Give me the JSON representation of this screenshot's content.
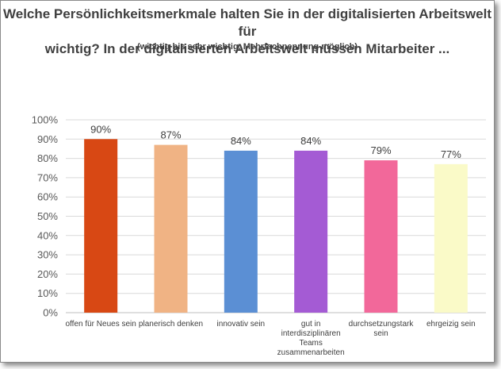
{
  "chart_data": {
    "type": "bar",
    "title_line1": "Welche Persönlichkeitsmerkmale halten Sie in der digitalisierten Arbeitswelt für",
    "title_line2": "wichtig? In der digitalisierten Arbeitswelt müssen Mitarbeiter ...",
    "subtitle": "(wichtig bis sehr wichtig, Mehrfachnennung möglich)",
    "categories": [
      [
        "offen für Neues sein"
      ],
      [
        "planerisch denken"
      ],
      [
        "innovativ sein"
      ],
      [
        "gut in",
        "interdisziplinären",
        "Teams",
        "zusammenarbeiten"
      ],
      [
        "durchsetzungstark",
        "sein"
      ],
      [
        "ehrgeizig sein"
      ]
    ],
    "values": [
      90,
      87,
      84,
      84,
      79,
      77
    ],
    "data_labels": [
      "90%",
      "87%",
      "84%",
      "84%",
      "79%",
      "77%"
    ],
    "colors": [
      "#D84814",
      "#F0B384",
      "#5B8FD4",
      "#A45BD4",
      "#F2689A",
      "#FAFAC8"
    ],
    "yticks": [
      "0%",
      "10%",
      "20%",
      "30%",
      "40%",
      "50%",
      "60%",
      "70%",
      "80%",
      "90%",
      "100%"
    ],
    "ylim": [
      0,
      100
    ],
    "xlabel": "",
    "ylabel": "",
    "grid": true,
    "gridline_color": "#D9D9D9",
    "axis_color": "#BFBFBF"
  }
}
